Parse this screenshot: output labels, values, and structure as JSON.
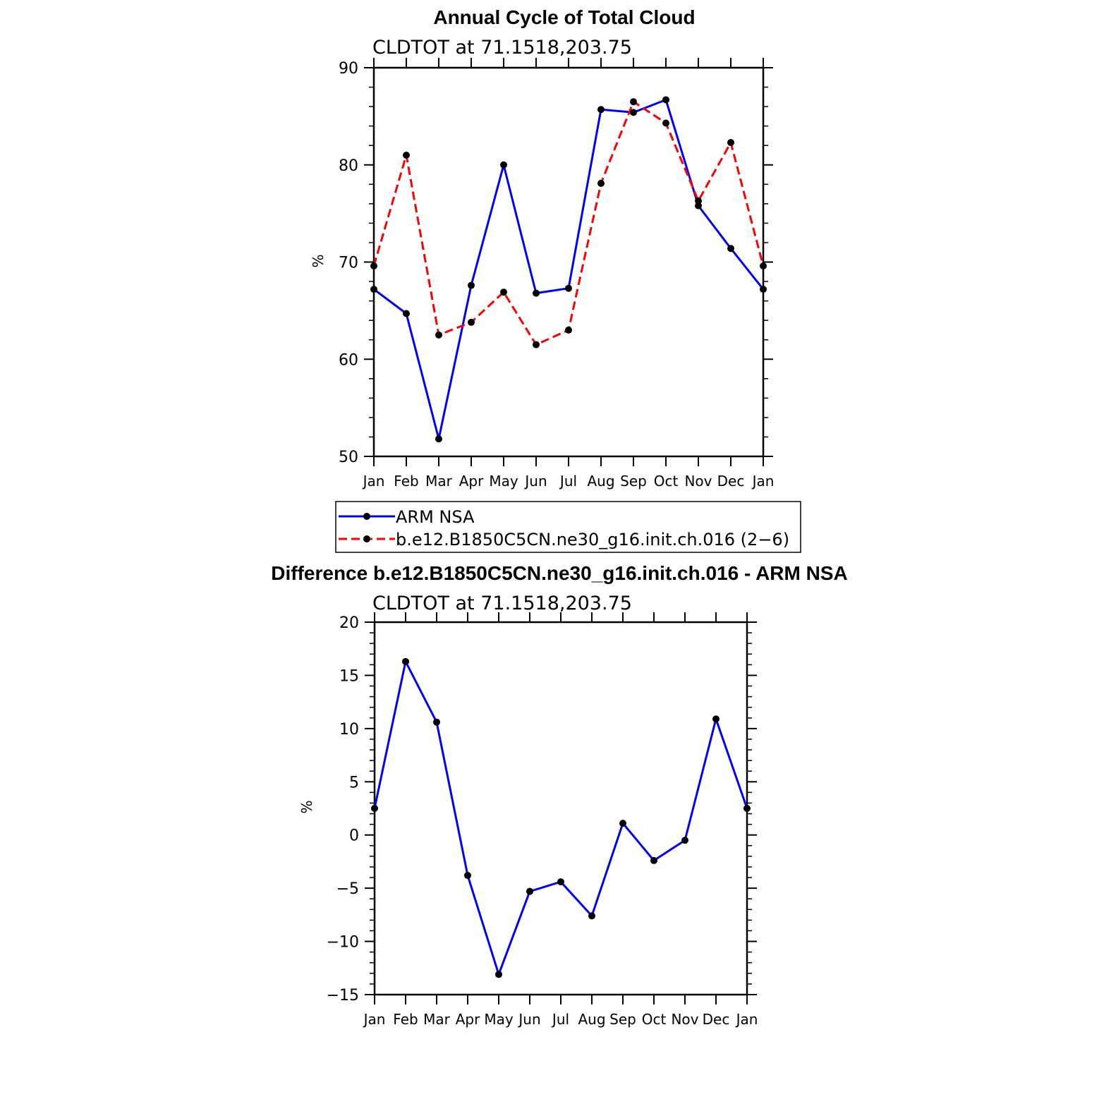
{
  "chart_data": [
    {
      "type": "line",
      "title": "Annual Cycle of Total Cloud",
      "subtitle": "CLDTOT at 71.1518,203.75",
      "xlabel": "",
      "ylabel": "%",
      "categories": [
        "Jan",
        "Feb",
        "Mar",
        "Apr",
        "May",
        "Jun",
        "Jul",
        "Aug",
        "Sep",
        "Oct",
        "Nov",
        "Dec",
        "Jan"
      ],
      "ylim": [
        50,
        90
      ],
      "yticks": [
        50,
        60,
        70,
        80,
        90
      ],
      "yticks_text": [
        "50",
        "60",
        "70",
        "80",
        "90"
      ],
      "series": [
        {
          "name": "ARM NSA",
          "color": "#0000ff",
          "style": "solid",
          "values": [
            67.2,
            64.7,
            51.8,
            67.6,
            80.0,
            66.8,
            67.3,
            85.7,
            85.4,
            86.7,
            75.8,
            71.4,
            67.2
          ]
        },
        {
          "name": "b.e12.B1850C5CN.ne30_g16.init.ch.016 (2−6)",
          "color": "#ff0000",
          "style": "dashed",
          "values": [
            69.6,
            81.0,
            62.5,
            63.8,
            66.9,
            61.5,
            63.0,
            78.1,
            86.5,
            84.3,
            76.3,
            82.3,
            69.6
          ]
        }
      ],
      "legend": "below"
    },
    {
      "type": "line",
      "title": "Difference b.e12.B1850C5CN.ne30_g16.init.ch.016 - ARM NSA",
      "subtitle": "CLDTOT at 71.1518,203.75",
      "xlabel": "",
      "ylabel": "%",
      "categories": [
        "Jan",
        "Feb",
        "Mar",
        "Apr",
        "May",
        "Jun",
        "Jul",
        "Aug",
        "Sep",
        "Oct",
        "Nov",
        "Dec",
        "Jan"
      ],
      "ylim": [
        -15,
        20
      ],
      "yticks": [
        -15,
        -10,
        -5,
        0,
        5,
        10,
        15,
        20
      ],
      "yticks_text": [
        "−15",
        "−10",
        "−5",
        "0",
        "5",
        "10",
        "15",
        "20"
      ],
      "series": [
        {
          "name": "Difference",
          "color": "#0000ff",
          "style": "solid",
          "values": [
            2.5,
            16.3,
            10.6,
            -3.8,
            -13.1,
            -5.3,
            -4.4,
            -7.6,
            1.1,
            -2.4,
            -0.5,
            10.9,
            2.5
          ]
        }
      ]
    }
  ]
}
